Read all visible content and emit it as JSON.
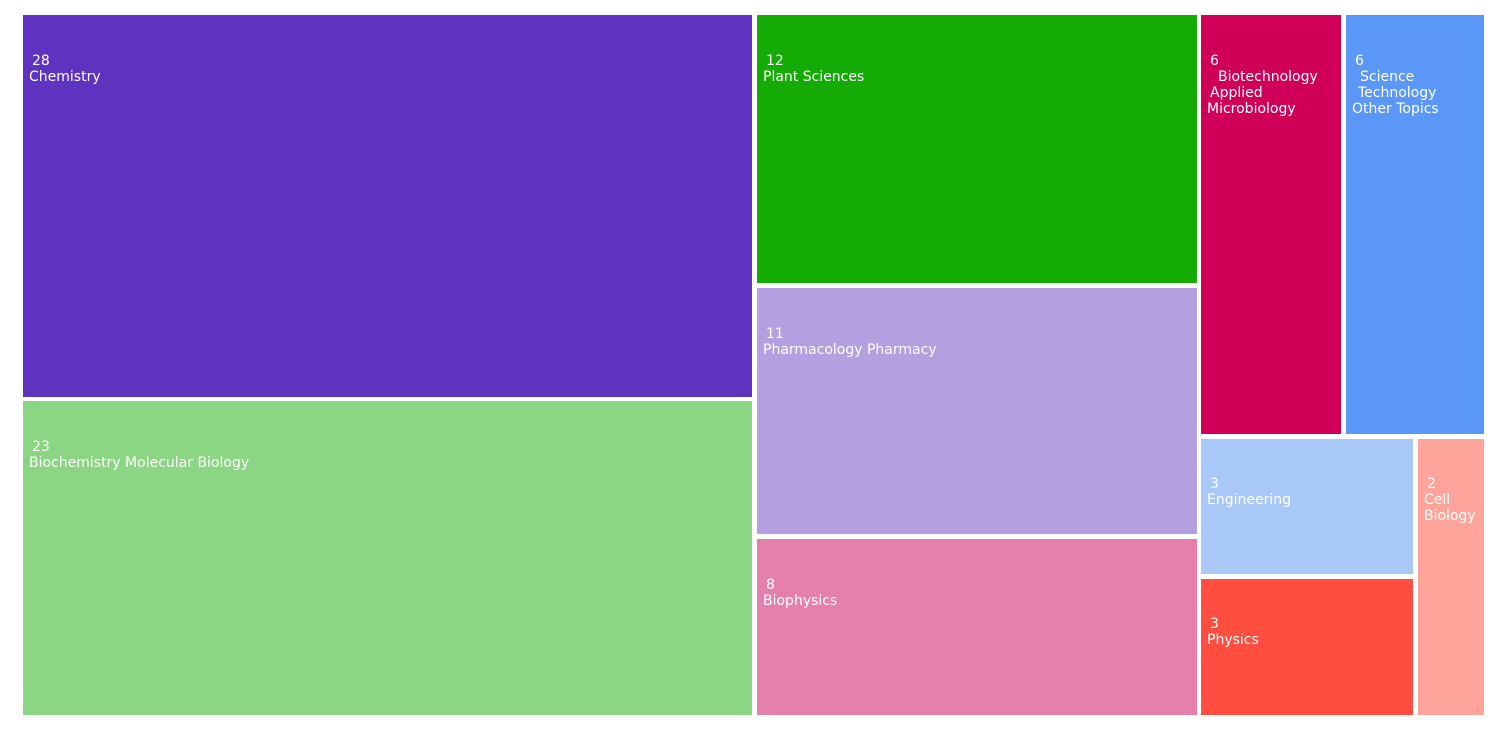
{
  "chart_data": {
    "type": "treemap",
    "items": [
      {
        "id": "chemistry",
        "value": "28",
        "label_lines": [
          "Chemistry"
        ],
        "color": "#5e33bf"
      },
      {
        "id": "biochemistry",
        "value": "23",
        "label_lines": [
          "Biochemistry Molecular Biology"
        ],
        "color": "#8bd683"
      },
      {
        "id": "plant-sciences",
        "value": "12",
        "label_lines": [
          "Plant Sciences"
        ],
        "color": "#13ab04"
      },
      {
        "id": "pharmacology",
        "value": "11",
        "label_lines": [
          "Pharmacology Pharmacy"
        ],
        "color": "#b49fe0"
      },
      {
        "id": "biophysics",
        "value": "8",
        "label_lines": [
          "Biophysics"
        ],
        "color": "#e67fab"
      },
      {
        "id": "biotechnology",
        "value": "6",
        "label_lines": [
          "Biotechnology",
          "Applied",
          "Microbiology"
        ],
        "color": "#d00058"
      },
      {
        "id": "science-technology",
        "value": "6",
        "label_lines": [
          "Science",
          "Technology",
          "Other Topics"
        ],
        "color": "#5b97f6"
      },
      {
        "id": "engineering",
        "value": "3",
        "label_lines": [
          "Engineering"
        ],
        "color": "#a8c8f8"
      },
      {
        "id": "physics",
        "value": "3",
        "label_lines": [
          "Physics"
        ],
        "color": "#ff4e3f"
      },
      {
        "id": "cell-biology",
        "value": "2",
        "label_lines": [
          "Cell",
          "Biology"
        ],
        "color": "#fea49a"
      }
    ]
  }
}
